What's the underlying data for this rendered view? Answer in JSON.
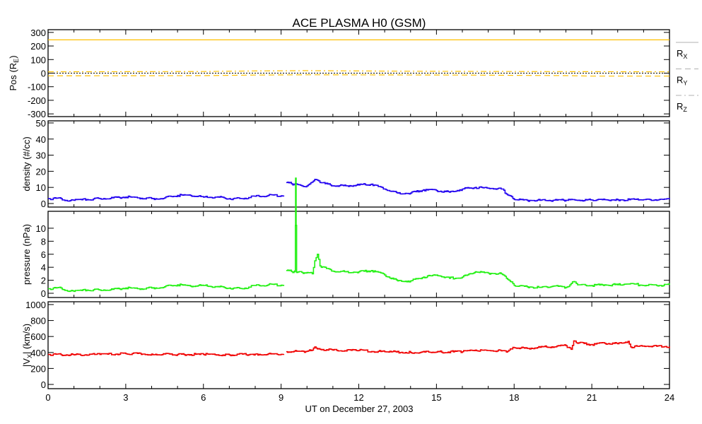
{
  "chart_data": {
    "type": "line",
    "title": "ACE PLASMA H0 (GSM)",
    "xlabel": "UT on December 27, 2003",
    "xlim": [
      0,
      24
    ],
    "xticks": [
      "0",
      "3",
      "6",
      "9",
      "12",
      "15",
      "18",
      "21",
      "24"
    ],
    "panels": [
      {
        "ylabel": "Pos (R",
        "ylabel_sub": "E",
        "ylabel_end": ")",
        "ylim": [
          -320,
          320
        ],
        "yticks": [
          300,
          200,
          100,
          0,
          -100,
          -200,
          -300
        ],
        "zero_line": true,
        "series": [
          {
            "name": "R",
            "sub": "X",
            "color": "#ffc000",
            "dash": "solid",
            "x": [
              0,
              24
            ],
            "y": [
              245,
              245
            ]
          },
          {
            "name": "R",
            "sub": "Y",
            "color": "#ffc000",
            "dash": "dashed",
            "x": [
              0,
              6,
              8,
              10,
              16,
              20,
              21,
              24
            ],
            "y": [
              -20,
              -18,
              -14,
              -12,
              -14,
              -18,
              -22,
              -22
            ]
          },
          {
            "name": "R",
            "sub": "Z",
            "color": "#ffc000",
            "dash": "dashdot",
            "x": [
              0,
              6,
              8,
              10,
              14,
              18,
              24
            ],
            "y": [
              10,
              12,
              16,
              18,
              14,
              12,
              10
            ]
          }
        ]
      },
      {
        "ylabel": "density (#/cc)",
        "ylim": [
          -2.2,
          51.3
        ],
        "yticks": [
          50,
          40,
          30,
          20,
          10,
          0
        ],
        "series": [
          {
            "name": "density",
            "color": "#2000f0",
            "x": [
              0,
              0.5,
              0.8,
              1,
              1.5,
              2,
              2.5,
              3,
              3.5,
              4,
              4.5,
              5,
              5.5,
              6,
              6.5,
              7,
              7.5,
              8,
              8.5,
              9.1,
              null,
              9.2,
              9.5,
              9.8,
              10,
              10.3,
              10.5,
              11,
              11.5,
              12,
              12.5,
              13,
              13.5,
              14,
              14.5,
              15,
              15.5,
              16,
              16.5,
              17,
              17.5,
              17.8,
              18,
              18.5,
              19,
              20,
              21,
              22,
              23,
              24
            ],
            "y": [
              3,
              3,
              1.5,
              2,
              2.5,
              3,
              3.5,
              4,
              3.5,
              3,
              3.5,
              5,
              5,
              4,
              4,
              3,
              3,
              4.5,
              5,
              5,
              null,
              13,
              12,
              11,
              11,
              15,
              13,
              11,
              11,
              11.5,
              12,
              9,
              6.5,
              6.5,
              8.5,
              8,
              7,
              9,
              10,
              9.5,
              9,
              5,
              2.5,
              2,
              2,
              2,
              2.2,
              2.3,
              2.4,
              2.5
            ]
          }
        ]
      },
      {
        "ylabel": "pressure (nPa)",
        "ylim": [
          -0.65,
          12.6
        ],
        "yticks": [
          10,
          8,
          6,
          4,
          2,
          0
        ],
        "series": [
          {
            "name": "pressure",
            "color": "#20f010",
            "x": [
              0,
              0.5,
              0.8,
              1,
              1.5,
              2,
              2.5,
              3,
              3.5,
              4,
              4.5,
              5,
              5.5,
              6,
              6.5,
              7,
              7.5,
              8,
              8.5,
              9.1,
              null,
              9.2,
              9.5,
              9.54,
              9.56,
              9.6,
              10,
              10.2,
              10.3,
              10.4,
              10.5,
              11,
              11.5,
              12,
              12.5,
              13,
              13.5,
              14,
              14.5,
              15,
              15.5,
              16,
              16.5,
              17,
              17.5,
              17.8,
              18,
              18.5,
              19,
              19.5,
              20,
              20.3,
              20.5,
              21,
              21.5,
              22,
              22.5,
              23,
              23.5,
              24
            ],
            "y": [
              0.7,
              0.8,
              0.3,
              0.3,
              0.5,
              0.5,
              0.6,
              0.8,
              0.7,
              0.8,
              1.0,
              1.3,
              1.1,
              1.2,
              1.0,
              0.8,
              0.7,
              1.2,
              1.3,
              1.3,
              null,
              3.5,
              3.3,
              3.3,
              17.7,
              3.2,
              3.2,
              3.0,
              5.0,
              6.0,
              4.2,
              3.4,
              3.3,
              3.3,
              3.5,
              2.8,
              1.9,
              1.9,
              2.5,
              2.8,
              2.3,
              2.5,
              3.3,
              3.1,
              3.0,
              2.0,
              1.2,
              1.0,
              0.9,
              1.1,
              0.9,
              1.8,
              1.3,
              1.2,
              1.3,
              1.3,
              1.5,
              1.2,
              1.2,
              1.3
            ]
          }
        ]
      },
      {
        "ylabel": "|V",
        "ylabel_sub": "X",
        "ylabel_end": "| (km/s)",
        "ylim": [
          -53,
          1035
        ],
        "yticks": [
          1000,
          800,
          600,
          400,
          200,
          0
        ],
        "series": [
          {
            "name": "|Vx|",
            "color": "#f00000",
            "x": [
              0,
              0.5,
              1,
              2,
              3,
              4,
              5,
              6,
              7,
              8,
              9.1,
              null,
              9.2,
              10,
              10.2,
              10.3,
              10.5,
              11,
              12,
              13,
              14,
              15,
              16,
              16.5,
              17,
              17.5,
              17.7,
              18,
              18.5,
              19,
              20,
              20.2,
              20.3,
              20.5,
              21,
              21.5,
              22,
              22.4,
              22.5,
              23,
              24
            ],
            "y": [
              375,
              372,
              370,
              375,
              385,
              380,
              375,
              375,
              370,
              380,
              380,
              null,
              410,
              415,
              430,
              470,
              440,
              430,
              425,
              410,
              400,
              405,
              410,
              430,
              425,
              420,
              405,
              460,
              450,
              465,
              485,
              440,
              545,
              520,
              500,
              515,
              510,
              540,
              470,
              480,
              475
            ]
          }
        ]
      }
    ]
  }
}
